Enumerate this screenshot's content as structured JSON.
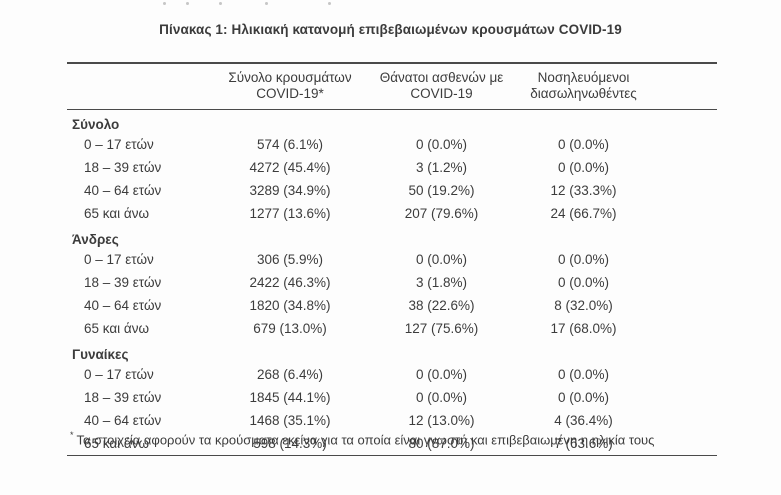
{
  "page": {
    "title": "Πίνακας 1: Ηλικιακή κατανομή επιβεβαιωμένων κρουσμάτων COVID-19",
    "footnote_marker": "*",
    "footnote": "Τα στοιχεία αφορούν τα κρούσματα εκείνα για τα οποία είναι γνωστή και επιβεβαιωμένη η ηλικία τους"
  },
  "colors": {
    "text": "#3c3c3c",
    "rule": "#4a4a4a",
    "background": "#fdfdfd"
  },
  "table": {
    "columns": [
      {
        "line1": "Σύνολο κρουσμάτων",
        "line2": "COVID-19*"
      },
      {
        "line1": "Θάνατοι ασθενών με",
        "line2": "COVID-19"
      },
      {
        "line1": "Νοσηλευόμενοι",
        "line2": "διασωληνωθέντες"
      }
    ],
    "sections": [
      {
        "name": "Σύνολο",
        "rows": [
          {
            "label": "0 – 17 ετών",
            "cases": "574 (6.1%)",
            "deaths": "0 (0.0%)",
            "intubated": "0 (0.0%)"
          },
          {
            "label": "18 – 39 ετών",
            "cases": "4272 (45.4%)",
            "deaths": "3 (1.2%)",
            "intubated": "0 (0.0%)"
          },
          {
            "label": "40 – 64 ετών",
            "cases": "3289 (34.9%)",
            "deaths": "50 (19.2%)",
            "intubated": "12 (33.3%)"
          },
          {
            "label": "65 και άνω",
            "cases": "1277 (13.6%)",
            "deaths": "207 (79.6%)",
            "intubated": "24 (66.7%)"
          }
        ]
      },
      {
        "name": "Άνδρες",
        "rows": [
          {
            "label": "0 – 17 ετών",
            "cases": "306 (5.9%)",
            "deaths": "0 (0.0%)",
            "intubated": "0 (0.0%)"
          },
          {
            "label": "18 – 39 ετών",
            "cases": "2422 (46.3%)",
            "deaths": "3 (1.8%)",
            "intubated": "0 (0.0%)"
          },
          {
            "label": "40 – 64 ετών",
            "cases": "1820 (34.8%)",
            "deaths": "38 (22.6%)",
            "intubated": "8 (32.0%)"
          },
          {
            "label": "65 και άνω",
            "cases": "679 (13.0%)",
            "deaths": "127 (75.6%)",
            "intubated": "17 (68.0%)"
          }
        ]
      },
      {
        "name": "Γυναίκες",
        "rows": [
          {
            "label": "0 – 17 ετών",
            "cases": "268 (6.4%)",
            "deaths": "0 (0.0%)",
            "intubated": "0 (0.0%)"
          },
          {
            "label": "18 – 39 ετών",
            "cases": "1845 (44.1%)",
            "deaths": "0 (0.0%)",
            "intubated": "0 (0.0%)"
          },
          {
            "label": "40 – 64 ετών",
            "cases": "1468 (35.1%)",
            "deaths": "12 (13.0%)",
            "intubated": "4 (36.4%)"
          },
          {
            "label": "65 και άνω",
            "cases": "598 (14.3%)",
            "deaths": "80 (87.0%)",
            "intubated": "7 (63.6%)"
          }
        ]
      }
    ]
  }
}
